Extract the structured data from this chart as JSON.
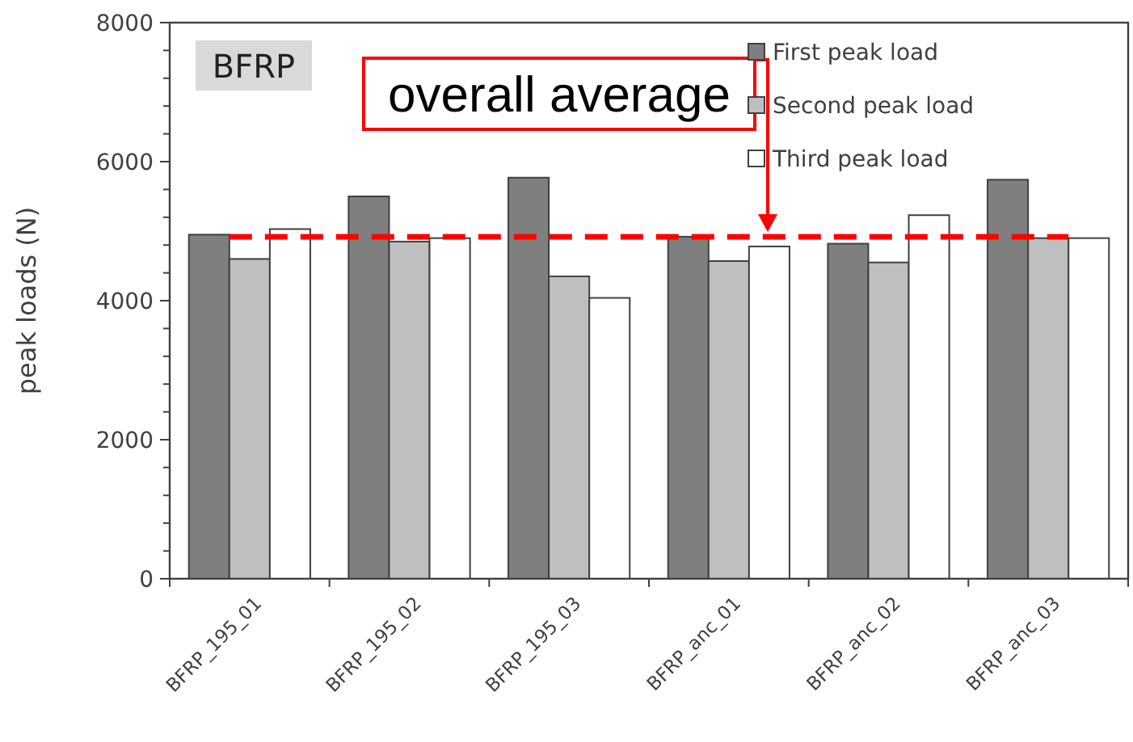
{
  "chart_data": {
    "type": "bar",
    "ylabel": "peak loads (N)",
    "categories": [
      "BFRP_195_01",
      "BFRP_195_02",
      "BFRP_195_03",
      "BFRP_anc_01",
      "BFRP_anc_02",
      "BFRP_anc_03"
    ],
    "series": [
      {
        "name": "First peak load",
        "color": "#7f7f7f",
        "values": [
          4950,
          5500,
          5770,
          4920,
          4820,
          5740
        ]
      },
      {
        "name": "Second peak load",
        "color": "#bfbfbf",
        "values": [
          4600,
          4850,
          4350,
          4570,
          4550,
          4900
        ]
      },
      {
        "name": "Third peak load",
        "color": "#ffffff",
        "values": [
          5030,
          4900,
          4040,
          4780,
          5230,
          4900
        ]
      }
    ],
    "ylim": [
      0,
      8000
    ],
    "yticks": [
      0,
      {
        "value": 400,
        "label": null
      },
      {
        "value": 800,
        "label": null
      },
      {
        "value": 1200,
        "label": null
      },
      {
        "value": 1600,
        "label": null
      },
      2000,
      {
        "value": 2400,
        "label": null
      },
      {
        "value": 2800,
        "label": null
      },
      {
        "value": 3200,
        "label": null
      },
      {
        "value": 3600,
        "label": null
      },
      4000,
      {
        "value": 4400,
        "label": null
      },
      {
        "value": 4800,
        "label": null
      },
      {
        "value": 5200,
        "label": null
      },
      {
        "value": 5600,
        "label": null
      },
      6000,
      {
        "value": 6400,
        "label": null
      },
      {
        "value": 6800,
        "label": null
      },
      {
        "value": 7200,
        "label": null
      },
      {
        "value": 7600,
        "label": null
      },
      8000
    ],
    "ref_lines": [
      {
        "axis": "y",
        "value": 4920,
        "label": "overall average",
        "color": "#ff0000",
        "line_style": "dashed"
      }
    ],
    "annotations": [
      "BFRP"
    ],
    "legend": "top right",
    "grid": false
  }
}
